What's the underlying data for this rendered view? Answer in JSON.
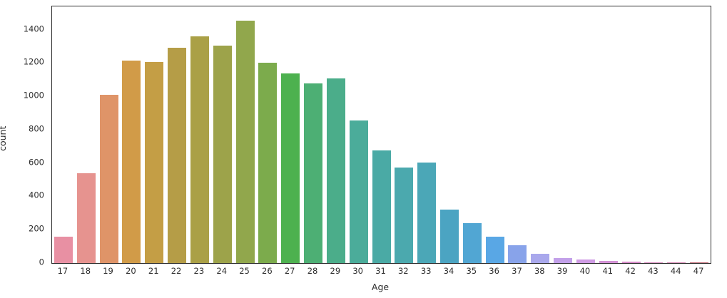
{
  "figure": {
    "background": "#ffffff",
    "spine_color": "#2e2e2e",
    "tick_label_color": "#2e2e2e"
  },
  "chart_data": {
    "type": "bar",
    "title": "",
    "xlabel": "Age",
    "ylabel": "count",
    "categories": [
      "17",
      "18",
      "19",
      "20",
      "21",
      "22",
      "23",
      "24",
      "25",
      "26",
      "27",
      "28",
      "29",
      "30",
      "31",
      "32",
      "33",
      "34",
      "35",
      "36",
      "37",
      "38",
      "39",
      "40",
      "41",
      "42",
      "43",
      "44",
      "47"
    ],
    "values": [
      160,
      540,
      1010,
      1215,
      1205,
      1290,
      1360,
      1305,
      1455,
      1200,
      1140,
      1080,
      1110,
      855,
      675,
      575,
      605,
      320,
      240,
      160,
      105,
      55,
      28,
      22,
      12,
      7,
      6,
      5,
      4
    ],
    "bar_colors": [
      "#e890a3",
      "#e6938f",
      "#df9468",
      "#d19b48",
      "#c49e45",
      "#b59d47",
      "#aaa046",
      "#9da34a",
      "#91a74c",
      "#7cab4c",
      "#4db14f",
      "#4daf74",
      "#4bad8a",
      "#4bac9a",
      "#4aaaa5",
      "#4ba9ae",
      "#4ba7b7",
      "#4ba4c2",
      "#51a6d3",
      "#59a7e5",
      "#88a3ea",
      "#a9a8ec",
      "#c2a0e9",
      "#cf9be4",
      "#d392d6",
      "#d58ac7",
      "#d487bc",
      "#d284b0",
      "#c16a76"
    ],
    "yticks": [
      0,
      200,
      400,
      600,
      800,
      1000,
      1200,
      1400
    ],
    "ylim": [
      0,
      1540
    ],
    "grid": false,
    "legend": null
  }
}
